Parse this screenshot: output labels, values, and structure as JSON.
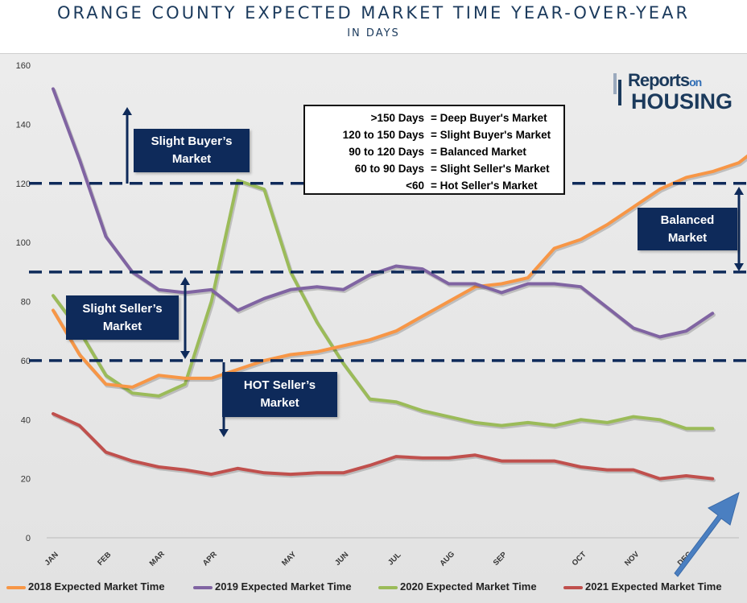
{
  "title": "ORANGE COUNTY EXPECTED MARKET TIME YEAR-OVER-YEAR",
  "subtitle": "IN DAYS",
  "logo": {
    "top": "Reports",
    "on": "on",
    "bottom": "HOUSING"
  },
  "zone_legend": [
    {
      "range": ">150 Days",
      "desc": "=  Deep Buyer's Market"
    },
    {
      "range": "120 to 150 Days",
      "desc": "=  Slight Buyer's Market"
    },
    {
      "range": "90 to 120 Days",
      "desc": "=  Balanced Market"
    },
    {
      "range": "60 to 90 Days",
      "desc": "=  Slight Seller's Market"
    },
    {
      "range": "<60",
      "desc": "=  Hot Seller's Market"
    }
  ],
  "annotations": {
    "slight_buyer": [
      "Slight Buyer’s",
      "Market"
    ],
    "slight_seller": [
      "Slight Seller’s",
      "Market"
    ],
    "hot_seller": [
      "HOT Seller’s",
      "Market"
    ],
    "balanced": [
      "Balanced",
      "Market"
    ]
  },
  "colors": {
    "2018": "#f79646",
    "2019": "#8064a2",
    "2020": "#9bbb59",
    "2021": "#c0504d",
    "threshold": "#0e2a5a",
    "highlight_arrow": "#4a7fc1"
  },
  "chart_data": {
    "type": "line",
    "ylim": [
      0,
      160
    ],
    "yticks": [
      "0",
      "20",
      "40",
      "60",
      "80",
      "100",
      "120",
      "140",
      "160"
    ],
    "month_labels": [
      {
        "label": "JAN",
        "x": 0
      },
      {
        "label": "FEB",
        "x": 2
      },
      {
        "label": "MAR",
        "x": 4
      },
      {
        "label": "APR",
        "x": 6
      },
      {
        "label": "MAY",
        "x": 9
      },
      {
        "label": "JUN",
        "x": 11
      },
      {
        "label": "JUL",
        "x": 13
      },
      {
        "label": "AUG",
        "x": 15
      },
      {
        "label": "SEP",
        "x": 17
      },
      {
        "label": "OCT",
        "x": 20
      },
      {
        "label": "NOV",
        "x": 22
      },
      {
        "label": "DEC",
        "x": 24
      }
    ],
    "x_max": 26,
    "thresholds": [
      120,
      90,
      60
    ],
    "series": [
      {
        "name": "2018 Expected Market Time",
        "color_key": "2018",
        "values": [
          77,
          62,
          52,
          51,
          55,
          54,
          54,
          57,
          60,
          62,
          63,
          65,
          67,
          70,
          75,
          80,
          85,
          86,
          88,
          98,
          101,
          106,
          112,
          118,
          122,
          124,
          127,
          134
        ]
      },
      {
        "name": "2019 Expected Market Time",
        "color_key": "2019",
        "values": [
          152,
          128,
          102,
          90,
          84,
          83,
          84,
          77,
          81,
          84,
          85,
          84,
          89,
          92,
          91,
          86,
          86,
          83,
          86,
          86,
          85,
          78,
          71,
          68,
          70,
          76
        ]
      },
      {
        "name": "2020 Expected Market Time",
        "color_key": "2020",
        "values": [
          82,
          70,
          55,
          49,
          48,
          52,
          80,
          121,
          118,
          90,
          73,
          59,
          47,
          46,
          43,
          41,
          39,
          38,
          39,
          38,
          40,
          39,
          41,
          40,
          37,
          37
        ]
      },
      {
        "name": "2021 Expected Market Time",
        "color_key": "2021",
        "values": [
          42,
          38,
          29,
          26,
          24,
          23,
          21.5,
          23.5,
          22,
          21.5,
          22,
          22,
          24.5,
          27.5,
          27,
          27,
          28,
          26,
          26,
          26,
          24,
          23,
          23,
          20,
          21,
          20
        ]
      }
    ]
  },
  "legend": [
    {
      "label": "2018 Expected Market Time",
      "color_key": "2018"
    },
    {
      "label": "2019 Expected Market Time",
      "color_key": "2019"
    },
    {
      "label": "2020 Expected Market Time",
      "color_key": "2020"
    },
    {
      "label": "2021 Expected Market Time",
      "color_key": "2021"
    }
  ]
}
